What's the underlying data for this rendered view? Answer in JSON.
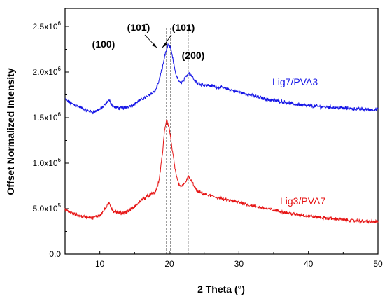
{
  "chart_data": {
    "type": "line",
    "xlabel": "2 Theta (°)",
    "ylabel": "Offset Normalized Intensity",
    "xlim": [
      5,
      50
    ],
    "ylim": [
      0,
      2700000
    ],
    "x_ticks": [
      {
        "value": 10,
        "label": "10"
      },
      {
        "value": 20,
        "label": "20"
      },
      {
        "value": 30,
        "label": "30"
      },
      {
        "value": 40,
        "label": "40"
      },
      {
        "value": 50,
        "label": "50"
      }
    ],
    "y_ticks": [
      {
        "value": 0,
        "mant": "0.0",
        "exp": ""
      },
      {
        "value": 500000,
        "mant": "5.0x10",
        "exp": "5"
      },
      {
        "value": 1000000,
        "mant": "1.0x10",
        "exp": "6"
      },
      {
        "value": 1500000,
        "mant": "1.5x10",
        "exp": "6"
      },
      {
        "value": 2000000,
        "mant": "2.0x10",
        "exp": "6"
      },
      {
        "value": 2500000,
        "mant": "2.5x10",
        "exp": "6"
      }
    ],
    "grid": false,
    "legend": "none",
    "peak_markers": [
      {
        "label": "(100)",
        "x": 11.2
      },
      {
        "label": "(101̄)",
        "x": 19.6
      },
      {
        "label": "(101)",
        "x": 20.2
      },
      {
        "label": "(200)",
        "x": 22.7
      }
    ],
    "series": [
      {
        "name": "Lig7/PVA3",
        "color": "#1414e6",
        "x": [
          5,
          6,
          7,
          8,
          9,
          10,
          10.5,
          11.3,
          12,
          13,
          14,
          15,
          16,
          17,
          18,
          18.5,
          19,
          19.4,
          19.8,
          20.2,
          20.6,
          21,
          21.5,
          22,
          22.8,
          23.5,
          24,
          25,
          26,
          28,
          30,
          32,
          34,
          36,
          38,
          40,
          42,
          44,
          46,
          48,
          50
        ],
        "y": [
          1700000,
          1650000,
          1620000,
          1580000,
          1560000,
          1590000,
          1620000,
          1690000,
          1620000,
          1600000,
          1620000,
          1650000,
          1700000,
          1740000,
          1800000,
          1900000,
          2050000,
          2200000,
          2290000,
          2260000,
          2100000,
          1960000,
          1880000,
          1900000,
          2000000,
          1930000,
          1880000,
          1860000,
          1850000,
          1820000,
          1780000,
          1740000,
          1700000,
          1680000,
          1650000,
          1630000,
          1620000,
          1610000,
          1600000,
          1590000,
          1590000
        ]
      },
      {
        "name": "Lig3/PVA7",
        "color": "#e61414",
        "x": [
          5,
          6,
          7,
          8,
          9,
          10,
          10.5,
          11.3,
          12,
          13,
          14,
          15,
          16,
          17,
          18,
          18.5,
          19,
          19.3,
          19.6,
          20,
          20.5,
          21,
          21.5,
          22,
          22.8,
          23.5,
          24,
          25,
          26,
          28,
          30,
          32,
          34,
          36,
          38,
          40,
          42,
          44,
          46,
          48,
          50
        ],
        "y": [
          490000,
          450000,
          420000,
          410000,
          400000,
          430000,
          470000,
          560000,
          470000,
          450000,
          470000,
          520000,
          600000,
          640000,
          680000,
          800000,
          1100000,
          1350000,
          1480000,
          1380000,
          1100000,
          850000,
          740000,
          760000,
          850000,
          760000,
          690000,
          660000,
          640000,
          600000,
          570000,
          530000,
          500000,
          470000,
          440000,
          420000,
          400000,
          385000,
          370000,
          360000,
          355000
        ]
      }
    ]
  }
}
